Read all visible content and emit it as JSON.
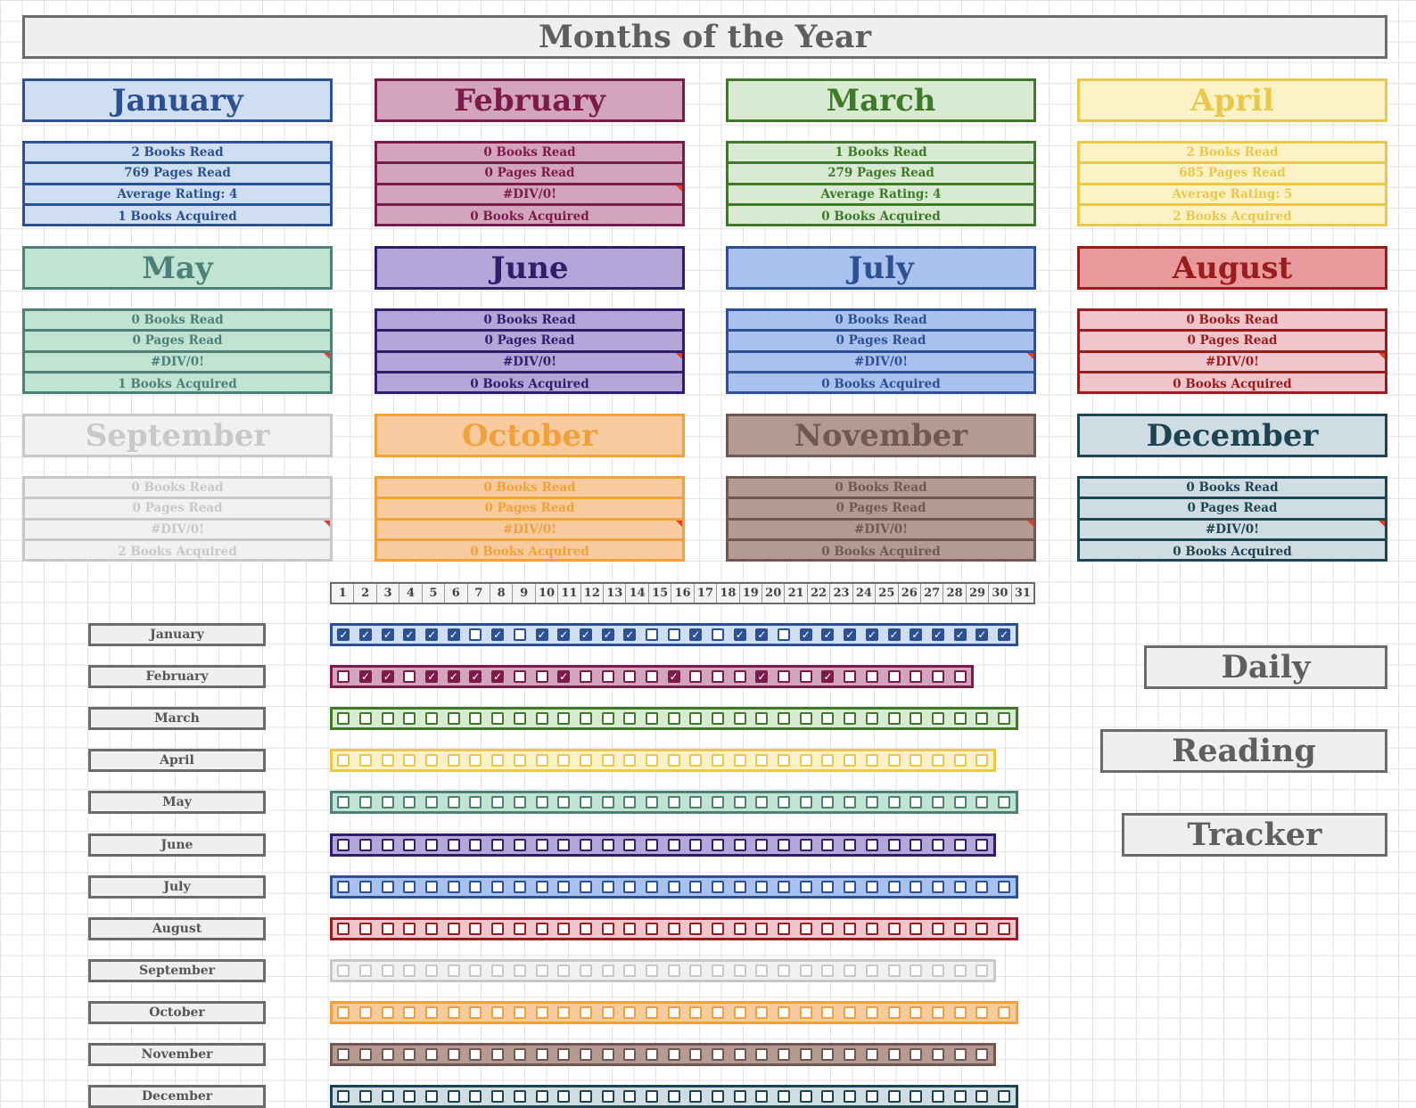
{
  "title": "Months of the Year",
  "months": [
    {
      "name": "January",
      "color": "#2b5192",
      "light": "#cfdff1",
      "head": "#cfdff1",
      "stats": [
        "2 Books Read",
        "769 Pages Read",
        "Average Rating: 4",
        "1 Books Acquired"
      ],
      "days": 31,
      "checked": [
        1,
        2,
        3,
        4,
        5,
        6,
        8,
        10,
        11,
        12,
        13,
        14,
        17,
        19,
        20,
        22,
        23,
        24,
        25,
        26,
        27,
        28,
        29,
        30,
        31
      ]
    },
    {
      "name": "February",
      "color": "#7c1a4c",
      "light": "#d3a4bd",
      "head": "#d3a4bd",
      "stats": [
        "0 Books Read",
        "0 Pages Read",
        "#DIV/0!",
        "0 Books Acquired"
      ],
      "days": 29,
      "checked": [
        2,
        3,
        5,
        6,
        7,
        8,
        11,
        16,
        20,
        23
      ]
    },
    {
      "name": "March",
      "color": "#3e7a28",
      "light": "#d9ead3",
      "head": "#d9ead3",
      "stats": [
        "1 Books Read",
        "279 Pages Read",
        "Average Rating: 4",
        "0 Books Acquired"
      ],
      "days": 31,
      "checked": []
    },
    {
      "name": "April",
      "color": "#e9c84a",
      "light": "#fdf1c6",
      "head": "#fdf1c6",
      "stats": [
        "2 Books Read",
        "685 Pages Read",
        "Average Rating: 5",
        "2 Books Acquired"
      ],
      "days": 30,
      "checked": []
    },
    {
      "name": "May",
      "color": "#4c8078",
      "light": "#c1e3d2",
      "head": "#c1e3d2",
      "stats": [
        "0 Books Read",
        "0 Pages Read",
        "#DIV/0!",
        "1 Books Acquired"
      ],
      "days": 31,
      "checked": []
    },
    {
      "name": "June",
      "color": "#2f1f6a",
      "light": "#b3a6d9",
      "head": "#b3a6d9",
      "stats": [
        "0 Books Read",
        "0 Pages Read",
        "#DIV/0!",
        "0 Books Acquired"
      ],
      "days": 30,
      "checked": []
    },
    {
      "name": "July",
      "color": "#2b5192",
      "light": "#a9c1ef",
      "head": "#a9c1ef",
      "stats": [
        "0 Books Read",
        "0 Pages Read",
        "#DIV/0!",
        "0 Books Acquired"
      ],
      "days": 31,
      "checked": []
    },
    {
      "name": "August",
      "color": "#9b1c1c",
      "light": "#efc6cb",
      "head": "#e7999b",
      "stats": [
        "0 Books Read",
        "0 Pages Read",
        "#DIV/0!",
        "0 Books Acquired"
      ],
      "days": 31,
      "checked": []
    },
    {
      "name": "September",
      "color": "#c8c8c8",
      "light": "#f1f1f1",
      "head": "#f1f1f1",
      "stats": [
        "0 Books Read",
        "0 Pages Read",
        "#DIV/0!",
        "2 Books Acquired"
      ],
      "days": 30,
      "checked": []
    },
    {
      "name": "October",
      "color": "#f0a13a",
      "light": "#f7cb9d",
      "head": "#f7cb9d",
      "stats": [
        "0 Books Read",
        "0 Pages Read",
        "#DIV/0!",
        "0 Books Acquired"
      ],
      "days": 31,
      "checked": []
    },
    {
      "name": "November",
      "color": "#6e5a52",
      "light": "#b59a91",
      "head": "#b59a91",
      "stats": [
        "0 Books Read",
        "0 Pages Read",
        "#DIV/0!",
        "0 Books Acquired"
      ],
      "days": 30,
      "checked": []
    },
    {
      "name": "December",
      "color": "#1d4453",
      "light": "#cfdde3",
      "head": "#cfdde3",
      "stats": [
        "0 Books Read",
        "0 Pages Read",
        "#DIV/0!",
        "0 Books Acquired"
      ],
      "days": 31,
      "checked": []
    }
  ],
  "day_numbers": [
    "1",
    "2",
    "3",
    "4",
    "5",
    "6",
    "7",
    "8",
    "9",
    "10",
    "11",
    "12",
    "13",
    "14",
    "15",
    "16",
    "17",
    "18",
    "19",
    "20",
    "21",
    "22",
    "23",
    "24",
    "25",
    "26",
    "27",
    "28",
    "29",
    "30",
    "31"
  ],
  "side_labels": [
    "Daily",
    "Reading",
    "Tracker"
  ]
}
